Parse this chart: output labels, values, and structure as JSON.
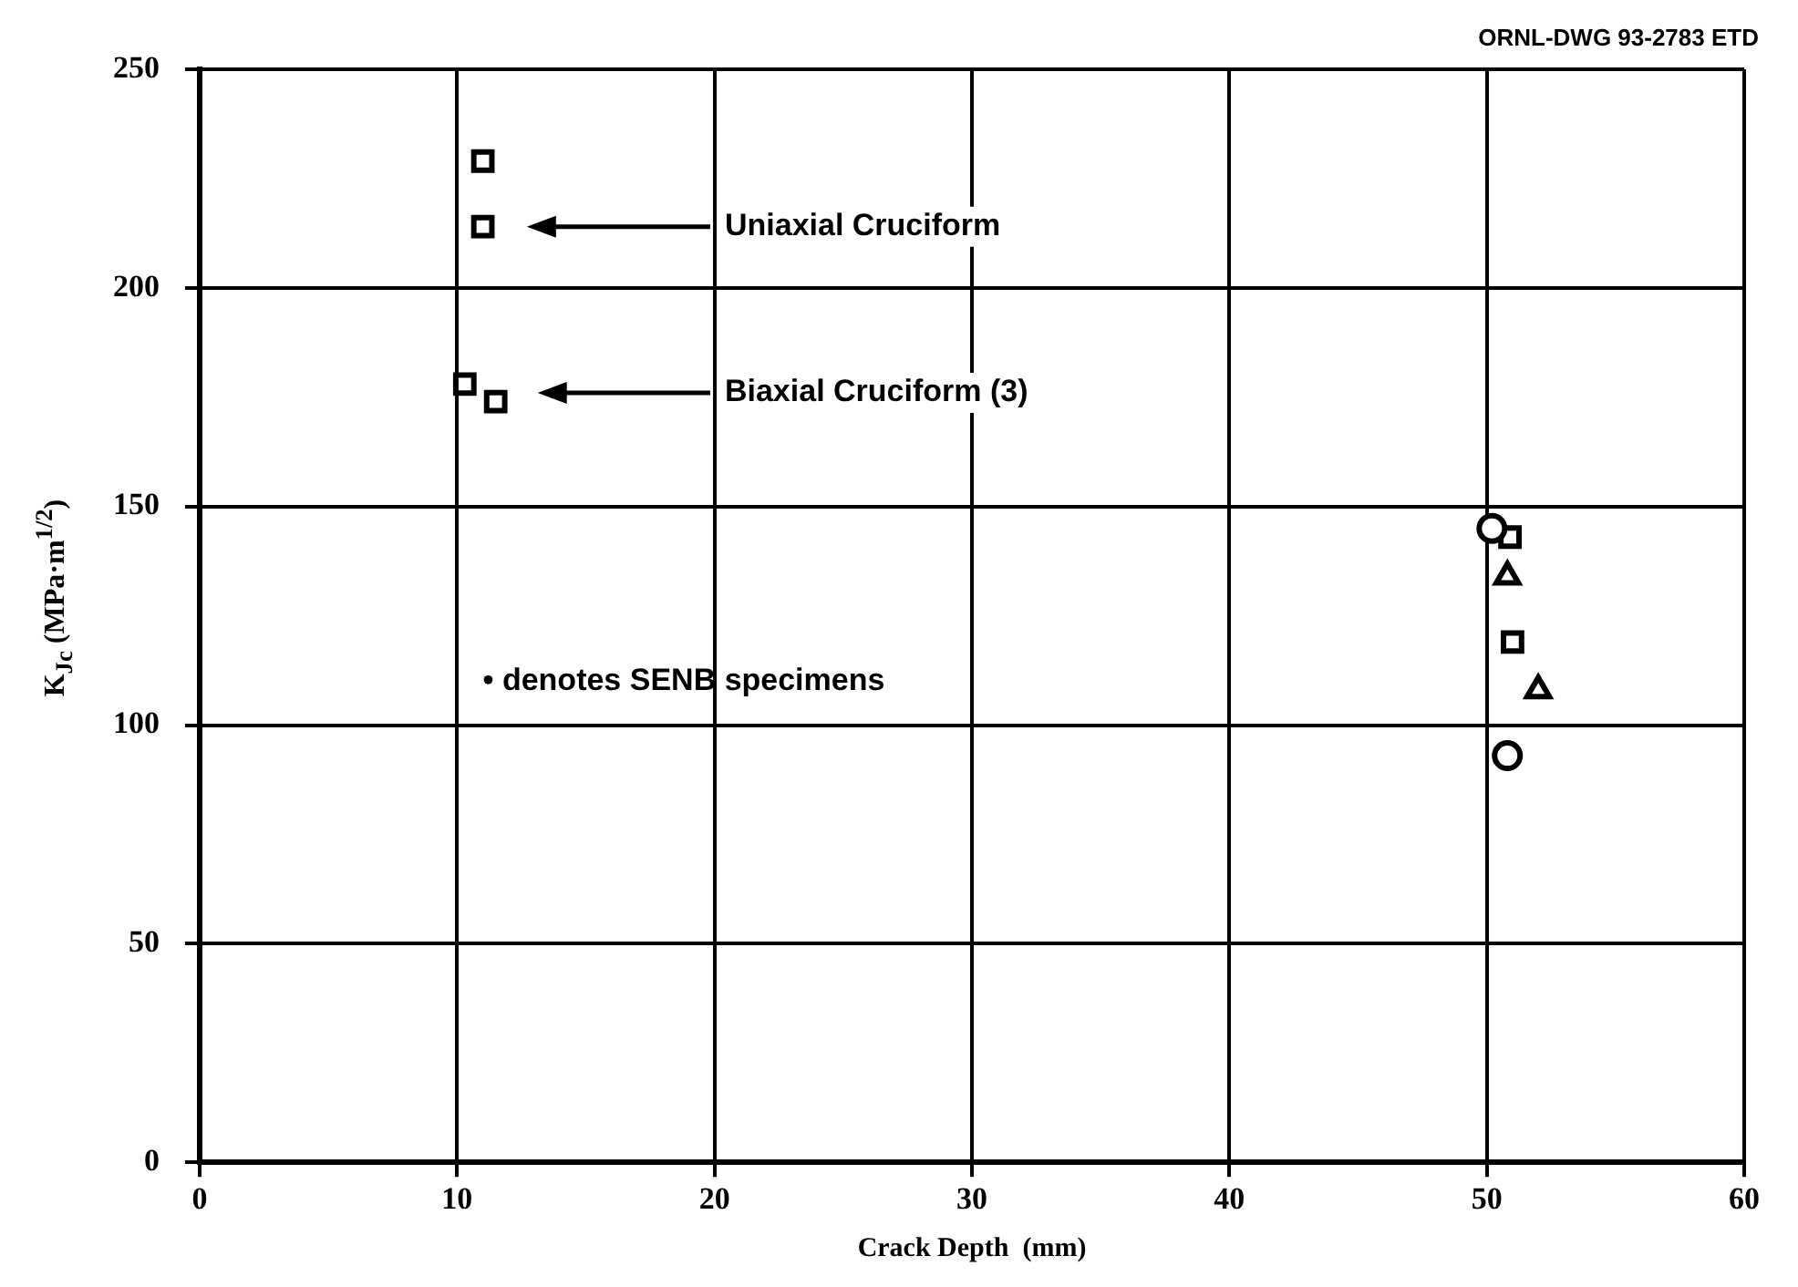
{
  "chart_data": {
    "type": "scatter",
    "xlabel": "Crack Depth  (mm)",
    "ylabel": "K$_{Jc}$ (MPa·m$^{1/2}$)",
    "xlim": [
      0,
      60
    ],
    "xticks": [
      0,
      10,
      20,
      30,
      40,
      50,
      60
    ],
    "ylim": [
      0,
      250
    ],
    "yticks": [
      0,
      50,
      100,
      150,
      200,
      250
    ],
    "grid": true,
    "legend": false,
    "series": [
      {
        "color": "#000000",
        "marker": "square",
        "x": [
          11.0,
          11.0
        ],
        "values": [
          229,
          214
        ]
      },
      {
        "color": "#000000",
        "marker": "square",
        "x": [
          10.3,
          11.5
        ],
        "values": [
          178,
          174
        ]
      },
      {
        "color": "#000000",
        "marker": "circle",
        "x": [
          50.2,
          50.8
        ],
        "values": [
          145,
          93
        ]
      },
      {
        "color": "#000000",
        "marker": "square",
        "x": [
          50.9,
          51.0
        ],
        "values": [
          143,
          119
        ]
      },
      {
        "color": "#000000",
        "marker": "triangle",
        "x": [
          50.8,
          52.0
        ],
        "values": [
          134,
          108
        ]
      }
    ],
    "annotations": [
      "Uniaxial Cruciform",
      "Biaxial Cruciform (3)",
      "• denotes SENB specimens",
      "ORNL-DWG 93-2783 ETD"
    ]
  }
}
